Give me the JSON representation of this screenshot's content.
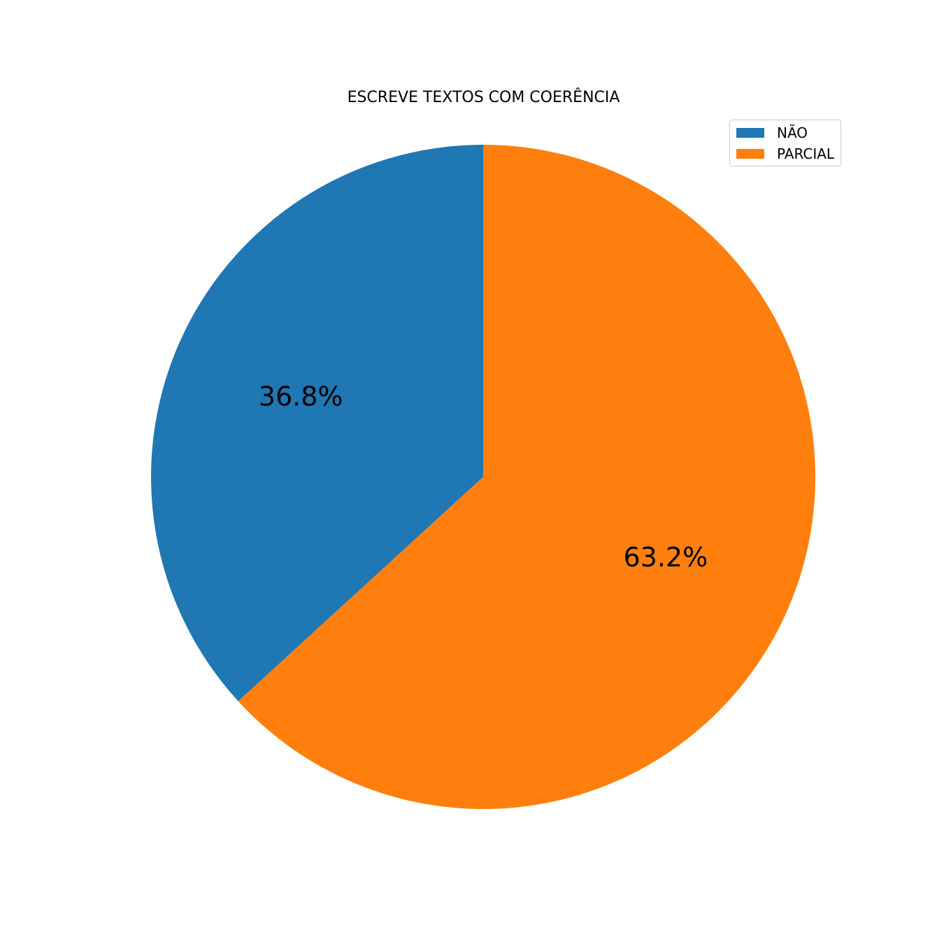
{
  "chart_data": {
    "type": "pie",
    "title": "ESCREVE TEXTOS COM COERÊNCIA",
    "labels": [
      "NÃO",
      "PARCIAL"
    ],
    "values": [
      36.8,
      63.2
    ],
    "pct_labels": [
      "36.8%",
      "63.2%"
    ],
    "colors": [
      "#1f77b4",
      "#ff7f0e"
    ],
    "start_angle_deg": 90,
    "direction": "counterclockwise",
    "legend_position": "upper right"
  }
}
